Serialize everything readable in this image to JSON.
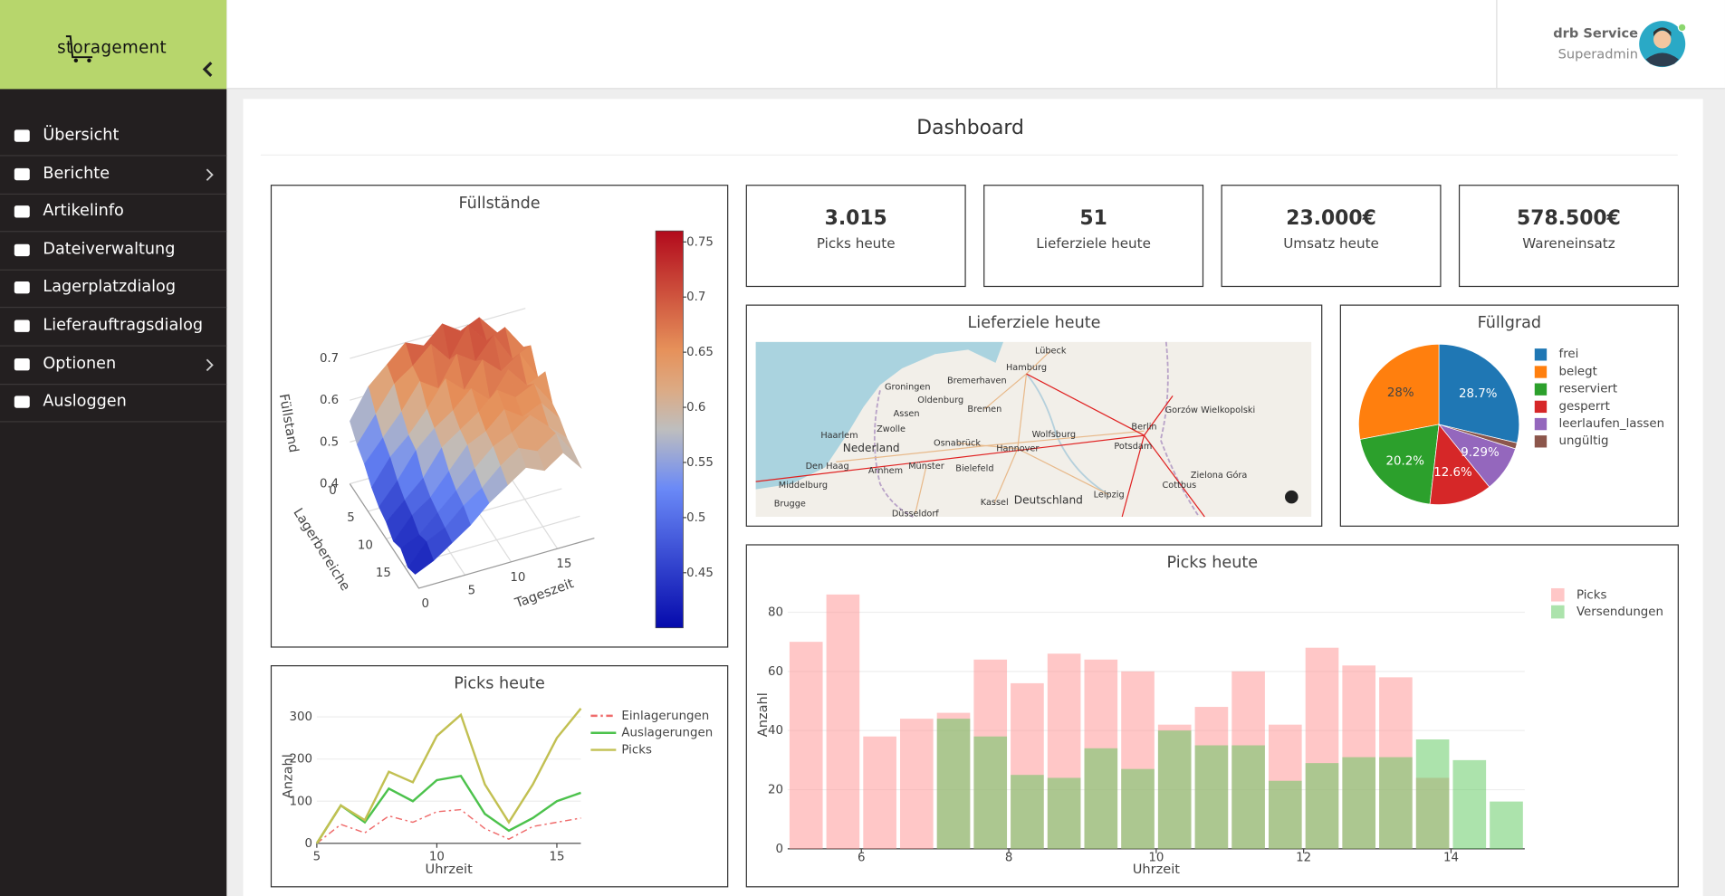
{
  "sidebar": {
    "logo": "storagement",
    "nav": [
      "Übersicht",
      "Berichte",
      "Artikelinfo",
      "Dateiverwaltung",
      "Lagerplatzdialog",
      "Lieferauftragsdialog",
      "Optionen",
      "Ausloggen"
    ]
  },
  "header": {
    "user": "drb Service",
    "role": "Superadmin"
  },
  "page": {
    "title": "Dashboard"
  },
  "kpis": [
    {
      "value": "3.015",
      "label": "Picks heute"
    },
    {
      "value": "51",
      "label": "Lieferziele heute"
    },
    {
      "value": "23.000€",
      "label": "Umsatz heute"
    },
    {
      "value": "578.500€",
      "label": "Wareneinsatz"
    }
  ],
  "map": {
    "title": "Lieferziele heute",
    "labels": [
      "Hamburg",
      "Bremen",
      "Berlin",
      "Hannover",
      "Groningen",
      "Oldenburg",
      "Bremerhaven",
      "Lübeck",
      "Wolfsburg",
      "Osnabrück",
      "Bielefeld",
      "Potsdam",
      "Leipzig",
      "Nederland",
      "Den Haag",
      "Zwolle",
      "Arnhem",
      "Münster",
      "Kassel",
      "Deutschland",
      "Düsseldorf",
      "Cottbus",
      "Zielona Góra",
      "Gorzów Wielkopolski",
      "Assen",
      "Haarlem",
      "Middelburg",
      "Brugge"
    ]
  },
  "chart_data": [
    {
      "type": "surface",
      "title": "Füllstände",
      "xlabel": "Tageszeit",
      "ylabel": "Lagerbereiche",
      "zlabel": "Füllstand",
      "x": [
        0,
        2,
        4,
        6,
        8,
        10,
        12,
        14,
        16,
        18
      ],
      "y": [
        0,
        2,
        4,
        6,
        8,
        10,
        12,
        14,
        16,
        18
      ],
      "z": [
        [
          0.55,
          0.62,
          0.66,
          0.7,
          0.68,
          0.72,
          0.69,
          0.71,
          0.66,
          0.63
        ],
        [
          0.52,
          0.58,
          0.64,
          0.67,
          0.71,
          0.66,
          0.73,
          0.68,
          0.7,
          0.64
        ],
        [
          0.5,
          0.55,
          0.6,
          0.66,
          0.63,
          0.7,
          0.67,
          0.72,
          0.65,
          0.67
        ],
        [
          0.47,
          0.53,
          0.57,
          0.62,
          0.68,
          0.64,
          0.7,
          0.66,
          0.69,
          0.62
        ],
        [
          0.45,
          0.5,
          0.56,
          0.6,
          0.63,
          0.67,
          0.63,
          0.69,
          0.64,
          0.66
        ],
        [
          0.44,
          0.48,
          0.52,
          0.58,
          0.61,
          0.64,
          0.68,
          0.65,
          0.67,
          0.61
        ],
        [
          0.42,
          0.47,
          0.5,
          0.55,
          0.6,
          0.62,
          0.66,
          0.63,
          0.65,
          0.6
        ],
        [
          0.43,
          0.45,
          0.49,
          0.53,
          0.57,
          0.61,
          0.63,
          0.66,
          0.62,
          0.58
        ],
        [
          0.41,
          0.46,
          0.48,
          0.52,
          0.55,
          0.59,
          0.62,
          0.6,
          0.63,
          0.57
        ],
        [
          0.42,
          0.44,
          0.47,
          0.5,
          0.54,
          0.57,
          0.6,
          0.58,
          0.61,
          0.56
        ]
      ],
      "xlim": [
        0,
        19
      ],
      "ylim": [
        0,
        19
      ],
      "zlim": [
        0.4,
        0.75
      ],
      "xticks": [
        0,
        5,
        10,
        15
      ],
      "yticks": [
        0,
        5,
        10,
        15
      ],
      "zticks": [
        0.4,
        0.5,
        0.6,
        0.7
      ],
      "colorscale": [
        [
          0,
          "#050aac"
        ],
        [
          0.35,
          "#6a89f7"
        ],
        [
          0.5,
          "#bebebe"
        ],
        [
          0.6,
          "#dcaa84"
        ],
        [
          0.7,
          "#e6915a"
        ],
        [
          1,
          "#b20a1c"
        ]
      ],
      "colorbar": {
        "lim": [
          0.4,
          0.76
        ],
        "ticks": [
          0.45,
          0.5,
          0.55,
          0.6,
          0.65,
          0.7,
          0.75
        ]
      }
    },
    {
      "type": "line",
      "title": "Picks heute",
      "xlabel": "Uhrzeit",
      "ylabel": "Anzahl",
      "x": [
        5,
        6,
        7,
        8,
        9,
        10,
        11,
        12,
        13,
        14,
        15,
        16
      ],
      "series": [
        {
          "name": "Einlagerungen",
          "color": "#ef6b6b",
          "dash": "dashdot",
          "values": [
            0,
            45,
            25,
            65,
            50,
            75,
            80,
            35,
            10,
            40,
            50,
            60
          ]
        },
        {
          "name": "Auslagerungen",
          "color": "#4cc24c",
          "values": [
            0,
            90,
            50,
            130,
            100,
            150,
            160,
            70,
            30,
            60,
            100,
            120
          ]
        },
        {
          "name": "Picks",
          "color": "#c2c052",
          "values": [
            0,
            90,
            55,
            170,
            145,
            255,
            305,
            140,
            50,
            140,
            250,
            320
          ]
        }
      ],
      "xlim": [
        5,
        16
      ],
      "ylim": [
        0,
        330
      ],
      "xticks": [
        5,
        10,
        15
      ],
      "yticks": [
        0,
        100,
        200,
        300
      ],
      "grid": true
    },
    {
      "type": "pie",
      "title": "Füllgrad",
      "categories": [
        "frei",
        "belegt",
        "reserviert",
        "gesperrt",
        "leerlaufen_lassen",
        "ungültig"
      ],
      "values": [
        28.7,
        28,
        20.2,
        12.6,
        9.29,
        1.21
      ],
      "value_labels": [
        "28.7%",
        "28%",
        "20.2%",
        "12.6%",
        "9.29%",
        null
      ],
      "colors": [
        "#1f77b4",
        "#ff7f0e",
        "#2ca02c",
        "#d62728",
        "#9467bd",
        "#8c564b"
      ]
    },
    {
      "type": "bar",
      "title": "Picks heute",
      "xlabel": "Uhrzeit",
      "ylabel": "Anzahl",
      "barmode": "overlay",
      "x": [
        5.25,
        5.75,
        6.25,
        6.75,
        7.25,
        7.75,
        8.25,
        8.75,
        9.25,
        9.75,
        10.25,
        10.75,
        11.25,
        11.75,
        12.25,
        12.75,
        13.25,
        13.75,
        14.25,
        14.75
      ],
      "series": [
        {
          "name": "Picks",
          "color": "#ff8f8f",
          "values": [
            70,
            86,
            38,
            44,
            46,
            64,
            56,
            66,
            64,
            60,
            42,
            48,
            60,
            42,
            68,
            62,
            58,
            24,
            null,
            null
          ]
        },
        {
          "name": "Versendungen",
          "color": "#5ac85a",
          "values": [
            null,
            null,
            null,
            null,
            44,
            38,
            25,
            24,
            34,
            27,
            40,
            35,
            35,
            23,
            29,
            31,
            31,
            37,
            30,
            16
          ]
        }
      ],
      "xlim": [
        5,
        15
      ],
      "ylim": [
        0,
        88
      ],
      "xticks": [
        6,
        8,
        10,
        12,
        14
      ],
      "yticks": [
        0,
        20,
        40,
        60,
        80
      ],
      "grid": true
    }
  ]
}
